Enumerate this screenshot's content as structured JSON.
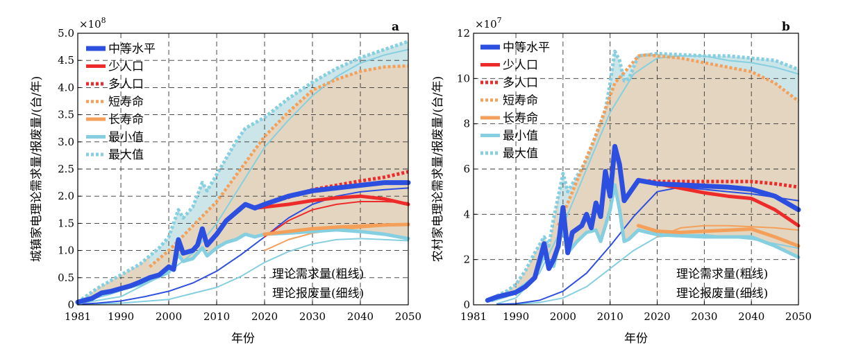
{
  "x_axis_label": "年份",
  "legend": {
    "medium": "中等水平",
    "low_pop": "少人口",
    "high_pop": "多人口",
    "short_life": "短寿命",
    "long_life": "长寿命",
    "min": "最小值",
    "max": "最大值"
  },
  "notes": {
    "demand": "理论需求量(粗线)",
    "scrap": "理论报废量(细线)"
  },
  "colors": {
    "blue": "#2d4fe0",
    "red": "#ee2b2b",
    "orange": "#f5a05a",
    "lightblue": "#85cfe0",
    "fill": "#d9c7ab",
    "fill_max": "#c8e8ee"
  },
  "chart_data": [
    {
      "type": "line",
      "panel": "a",
      "ylabel": "城镇家电理论需求量/报废量/(台/年)",
      "multiplier": "×10",
      "multiplier_exp": "8",
      "xlim": [
        1981,
        2050
      ],
      "ylim": [
        0,
        5.0
      ],
      "xticks": [
        1981,
        1990,
        2000,
        2010,
        2020,
        2030,
        2040,
        2050
      ],
      "yticks": [
        0,
        0.5,
        1.0,
        1.5,
        2.0,
        2.5,
        3.0,
        3.5,
        4.0,
        4.5,
        5.0
      ],
      "ytick_labels": [
        "0",
        "0.5",
        "1.0",
        "1.5",
        "2.0",
        "2.5",
        "3.0",
        "3.5",
        "4.0",
        "4.5",
        "5.0"
      ],
      "series": [
        {
          "name": "最大值",
          "role": "max_demand",
          "x": [
            1981,
            1985,
            1988,
            1990,
            1992,
            1994,
            1996,
            1998,
            2000,
            2002,
            2003,
            2005,
            2007,
            2008,
            2010,
            2012,
            2014,
            2016,
            2020,
            2025,
            2030,
            2035,
            2040,
            2045,
            2050
          ],
          "y": [
            0.05,
            0.3,
            0.45,
            0.55,
            0.65,
            0.75,
            0.9,
            1.05,
            1.25,
            1.75,
            1.6,
            1.8,
            2.25,
            2.1,
            2.4,
            2.7,
            3.0,
            3.25,
            3.45,
            3.8,
            4.1,
            4.35,
            4.55,
            4.7,
            4.85
          ]
        },
        {
          "name": "最小值",
          "role": "min_demand",
          "x": [
            1981,
            1985,
            1988,
            1990,
            1992,
            1994,
            1996,
            1998,
            2000,
            2002,
            2003,
            2005,
            2007,
            2008,
            2010,
            2012,
            2014,
            2016,
            2018,
            2020,
            2025,
            2030,
            2035,
            2040,
            2045,
            2050
          ],
          "y": [
            0.02,
            0.15,
            0.22,
            0.28,
            0.33,
            0.38,
            0.45,
            0.52,
            0.6,
            0.92,
            0.8,
            0.85,
            1.05,
            0.9,
            1.05,
            1.15,
            1.2,
            1.3,
            1.25,
            1.3,
            1.32,
            1.35,
            1.38,
            1.35,
            1.3,
            1.22
          ]
        },
        {
          "name": "中等水平",
          "role": "medium_demand",
          "x": [
            1981,
            1984,
            1986,
            1988,
            1990,
            1992,
            1994,
            1996,
            1998,
            2000,
            2001,
            2002,
            2003,
            2005,
            2006,
            2007,
            2008,
            2010,
            2012,
            2014,
            2016,
            2018,
            2020,
            2025,
            2030,
            2035,
            2040,
            2045,
            2050
          ],
          "y": [
            0.05,
            0.12,
            0.22,
            0.25,
            0.3,
            0.35,
            0.42,
            0.5,
            0.55,
            0.7,
            0.65,
            1.2,
            0.95,
            1.0,
            1.1,
            1.4,
            1.1,
            1.3,
            1.55,
            1.7,
            1.85,
            1.78,
            1.85,
            2.0,
            2.1,
            2.15,
            2.2,
            2.25,
            2.25
          ]
        },
        {
          "name": "少人口",
          "role": "low_pop_demand",
          "x": [
            2018,
            2025,
            2030,
            2035,
            2040,
            2045,
            2050
          ],
          "y": [
            1.78,
            1.85,
            1.92,
            1.97,
            2.0,
            1.95,
            1.85
          ]
        },
        {
          "name": "多人口",
          "role": "high_pop_demand",
          "x": [
            2018,
            2025,
            2030,
            2035,
            2040,
            2045,
            2050
          ],
          "y": [
            1.8,
            1.98,
            2.12,
            2.2,
            2.28,
            2.35,
            2.45
          ]
        },
        {
          "name": "短寿命",
          "role": "short_life_demand",
          "x": [
            1996,
            2000,
            2005,
            2010,
            2015,
            2020,
            2025,
            2030,
            2035,
            2040,
            2045,
            2050
          ],
          "y": [
            0.7,
            1.0,
            1.45,
            1.9,
            2.5,
            3.1,
            3.55,
            3.95,
            4.15,
            4.3,
            4.38,
            4.4
          ]
        },
        {
          "name": "长寿命",
          "role": "long_life_demand",
          "x": [
            2020,
            2025,
            2030,
            2035,
            2040,
            2045,
            2050
          ],
          "y": [
            1.3,
            1.35,
            1.4,
            1.43,
            1.45,
            1.47,
            1.48
          ]
        },
        {
          "name": "中等水平",
          "role": "medium_scrap",
          "x": [
            1981,
            1985,
            1990,
            1995,
            2000,
            2005,
            2010,
            2015,
            2020,
            2025,
            2030,
            2035,
            2040,
            2045,
            2050
          ],
          "y": [
            0.01,
            0.03,
            0.07,
            0.15,
            0.25,
            0.4,
            0.62,
            0.92,
            1.25,
            1.6,
            1.85,
            2.0,
            2.08,
            2.12,
            2.15
          ]
        },
        {
          "name": "最大值",
          "role": "max_scrap",
          "x": [
            1981,
            1990,
            2000,
            2005,
            2010,
            2015,
            2020,
            2025,
            2030,
            2035,
            2040,
            2045,
            2050
          ],
          "y": [
            0.02,
            0.15,
            0.6,
            0.95,
            1.5,
            2.2,
            2.9,
            3.4,
            3.85,
            4.2,
            4.45,
            4.6,
            4.7
          ]
        },
        {
          "name": "最小值",
          "role": "min_scrap",
          "x": [
            1981,
            1990,
            2000,
            2010,
            2015,
            2020,
            2025,
            2030,
            2035,
            2040,
            2045,
            2050
          ],
          "y": [
            0.01,
            0.03,
            0.1,
            0.32,
            0.52,
            0.78,
            0.98,
            1.12,
            1.2,
            1.22,
            1.2,
            1.18
          ]
        },
        {
          "name": "少人口",
          "role": "low_pop_scrap",
          "x": [
            2020,
            2025,
            2030,
            2035,
            2040,
            2045,
            2050
          ],
          "y": [
            1.25,
            1.55,
            1.75,
            1.85,
            1.9,
            1.9,
            1.88
          ]
        },
        {
          "name": "长寿命",
          "role": "long_life_scrap",
          "x": [
            2020,
            2025,
            2030,
            2035,
            2040,
            2045,
            2050
          ],
          "y": [
            1.0,
            1.2,
            1.32,
            1.38,
            1.42,
            1.45,
            1.47
          ]
        }
      ]
    },
    {
      "type": "line",
      "panel": "b",
      "ylabel": "农村家电理论需求量/报废量/(台/年)",
      "multiplier": "×10",
      "multiplier_exp": "7",
      "xlim": [
        1981,
        2050
      ],
      "ylim": [
        0,
        12
      ],
      "xticks": [
        1981,
        1990,
        2000,
        2010,
        2020,
        2030,
        2040,
        2050
      ],
      "yticks": [
        0,
        2,
        4,
        6,
        8,
        10,
        12
      ],
      "ytick_labels": [
        "0",
        "2",
        "4",
        "6",
        "8",
        "10",
        "12"
      ],
      "series": [
        {
          "name": "最大值",
          "role": "max_demand",
          "x": [
            1985,
            1988,
            1990,
            1992,
            1994,
            1996,
            1997,
            1998,
            2000,
            2001,
            2003,
            2005,
            2007,
            2009,
            2010,
            2011,
            2012,
            2013,
            2014,
            2016,
            2020,
            2025,
            2030,
            2035,
            2040,
            2045,
            2050
          ],
          "y": [
            0.3,
            0.6,
            0.9,
            1.5,
            2.3,
            3.0,
            2.6,
            3.8,
            5.8,
            5.0,
            5.7,
            6.4,
            7.5,
            8.6,
            9.8,
            11.2,
            10.8,
            9.9,
            10.0,
            11.0,
            11.1,
            11.05,
            11.0,
            11.0,
            10.9,
            10.8,
            10.4
          ]
        },
        {
          "name": "最小值",
          "role": "min_demand",
          "x": [
            1985,
            1988,
            1990,
            1992,
            1994,
            1996,
            1998,
            2000,
            2001,
            2003,
            2005,
            2007,
            2008,
            2010,
            2011,
            2012,
            2013,
            2014,
            2016,
            2020,
            2025,
            2030,
            2035,
            2040,
            2045,
            2050
          ],
          "y": [
            0.2,
            0.4,
            0.6,
            0.9,
            1.2,
            2.2,
            1.7,
            3.5,
            2.3,
            2.8,
            3.2,
            3.3,
            2.8,
            4.2,
            5.3,
            4.2,
            2.8,
            2.9,
            3.3,
            3.1,
            3.05,
            3.0,
            3.0,
            3.0,
            2.6,
            2.1
          ]
        },
        {
          "name": "中等水平",
          "role": "medium_demand",
          "x": [
            1984,
            1986,
            1988,
            1990,
            1992,
            1994,
            1996,
            1997,
            1998,
            1999,
            2000,
            2001,
            2002,
            2004,
            2005,
            2006,
            2007,
            2008,
            2009,
            2010,
            2011,
            2012,
            2013,
            2014,
            2016,
            2020,
            2025,
            2030,
            2035,
            2040,
            2045,
            2050
          ],
          "y": [
            0.2,
            0.35,
            0.45,
            0.55,
            0.8,
            1.2,
            2.7,
            1.6,
            2.0,
            2.6,
            4.3,
            2.3,
            3.2,
            3.5,
            4.0,
            3.4,
            4.5,
            3.9,
            5.9,
            4.8,
            7.0,
            6.2,
            4.6,
            4.9,
            5.5,
            5.35,
            5.3,
            5.25,
            5.2,
            5.1,
            4.8,
            4.2
          ]
        },
        {
          "name": "少人口",
          "role": "low_pop_demand",
          "x": [
            2016,
            2020,
            2025,
            2030,
            2035,
            2040,
            2045,
            2050
          ],
          "y": [
            5.5,
            5.35,
            5.15,
            4.95,
            4.8,
            4.7,
            4.2,
            3.5
          ]
        },
        {
          "name": "多人口",
          "role": "high_pop_demand",
          "x": [
            2016,
            2020,
            2025,
            2030,
            2035,
            2040,
            2045,
            2050
          ],
          "y": [
            5.5,
            5.45,
            5.45,
            5.45,
            5.45,
            5.45,
            5.35,
            5.2
          ]
        },
        {
          "name": "短寿命",
          "role": "short_life_demand",
          "x": [
            1999,
            2003,
            2007,
            2011,
            2014,
            2016,
            2018,
            2020,
            2025,
            2030,
            2035,
            2040,
            2045,
            2050
          ],
          "y": [
            3.5,
            5.5,
            7.5,
            9.8,
            10.5,
            11.0,
            11.05,
            11.0,
            10.9,
            10.7,
            10.5,
            10.3,
            9.8,
            9.0
          ]
        },
        {
          "name": "长寿命",
          "role": "long_life_demand",
          "x": [
            2016,
            2020,
            2025,
            2030,
            2035,
            2040,
            2045,
            2050
          ],
          "y": [
            3.5,
            3.25,
            3.2,
            3.25,
            3.3,
            3.35,
            3.0,
            2.6
          ]
        },
        {
          "name": "中等水平",
          "role": "medium_scrap",
          "x": [
            1986,
            1990,
            1995,
            2000,
            2005,
            2010,
            2015,
            2020,
            2025,
            2030,
            2035,
            2040,
            2045,
            2050
          ],
          "y": [
            0.02,
            0.05,
            0.2,
            0.6,
            1.4,
            2.6,
            3.9,
            5.0,
            5.2,
            5.1,
            5.0,
            4.9,
            4.75,
            4.6
          ]
        },
        {
          "name": "最大值",
          "role": "max_scrap",
          "x": [
            1986,
            1990,
            1995,
            2000,
            2005,
            2010,
            2015,
            2020,
            2025,
            2030,
            2035,
            2040,
            2045,
            2050
          ],
          "y": [
            0.05,
            0.3,
            1.4,
            3.5,
            6.0,
            8.5,
            10.2,
            10.9,
            11.0,
            11.0,
            10.8,
            10.7,
            10.5,
            10.2
          ]
        },
        {
          "name": "最小值",
          "role": "min_scrap",
          "x": [
            1986,
            1990,
            1995,
            2000,
            2005,
            2010,
            2015,
            2020,
            2025,
            2030,
            2035,
            2040,
            2045,
            2050
          ],
          "y": [
            0.01,
            0.03,
            0.1,
            0.3,
            0.8,
            1.6,
            2.4,
            3.0,
            3.1,
            3.1,
            3.0,
            2.9,
            2.7,
            2.5
          ]
        },
        {
          "name": "长寿命",
          "role": "long_life_scrap",
          "x": [
            2020,
            2025,
            2030,
            2035,
            2040,
            2045,
            2050
          ],
          "y": [
            3.0,
            3.4,
            3.5,
            3.5,
            3.45,
            3.4,
            3.3
          ]
        }
      ]
    }
  ]
}
